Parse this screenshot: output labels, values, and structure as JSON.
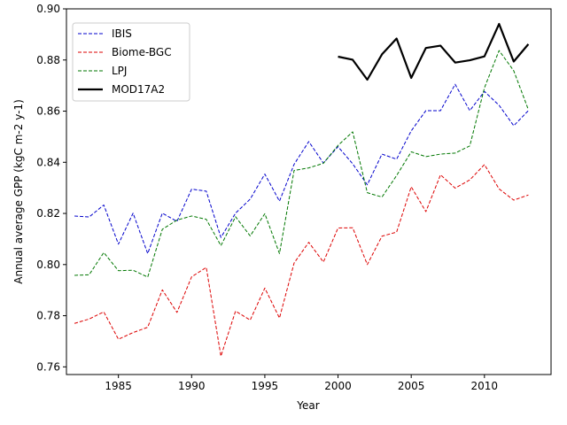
{
  "chart_data": {
    "type": "line",
    "title": "",
    "xlabel": "Year",
    "ylabel": "Annual average GPP (kgC m-2 y-1)",
    "xlim": [
      1981.45,
      2014.55
    ],
    "ylim": [
      0.757,
      0.9
    ],
    "xticks": [
      1985,
      1990,
      1995,
      2000,
      2005,
      2010
    ],
    "xtick_labels": [
      "1985",
      "1990",
      "1995",
      "2000",
      "2005",
      "2010"
    ],
    "yticks": [
      0.76,
      0.78,
      0.8,
      0.82,
      0.84,
      0.86,
      0.88,
      0.9
    ],
    "ytick_labels": [
      "0.76",
      "0.78",
      "0.80",
      "0.82",
      "0.84",
      "0.86",
      "0.88",
      "0.90"
    ],
    "legend_position": "upper-left",
    "series": [
      {
        "name": "IBIS",
        "color": "#0000cc",
        "style": "dashed",
        "x": [
          1982,
          1983,
          1984,
          1985,
          1986,
          1987,
          1988,
          1989,
          1990,
          1991,
          1992,
          1993,
          1994,
          1995,
          1996,
          1997,
          1998,
          1999,
          2000,
          2001,
          2002,
          2003,
          2004,
          2005,
          2006,
          2007,
          2008,
          2009,
          2010,
          2011,
          2012,
          2013
        ],
        "values": [
          0.819,
          0.8186,
          0.8233,
          0.808,
          0.8201,
          0.8043,
          0.8201,
          0.8169,
          0.8295,
          0.8287,
          0.8106,
          0.8201,
          0.8256,
          0.8354,
          0.8248,
          0.8392,
          0.8481,
          0.8397,
          0.8461,
          0.8394,
          0.8312,
          0.8432,
          0.8412,
          0.8523,
          0.8602,
          0.8602,
          0.8705,
          0.8602,
          0.8677,
          0.8623,
          0.8543,
          0.8602
        ]
      },
      {
        "name": "Biome-BGC",
        "color": "#dd0000",
        "style": "dashed",
        "x": [
          1982,
          1983,
          1984,
          1985,
          1986,
          1987,
          1988,
          1989,
          1990,
          1991,
          1992,
          1993,
          1994,
          1995,
          1996,
          1997,
          1998,
          1999,
          2000,
          2001,
          2002,
          2003,
          2004,
          2005,
          2006,
          2007,
          2008,
          2009,
          2010,
          2011,
          2012,
          2013
        ],
        "values": [
          0.777,
          0.7787,
          0.7815,
          0.7708,
          0.7734,
          0.7755,
          0.7901,
          0.7813,
          0.7952,
          0.7989,
          0.7642,
          0.7818,
          0.7783,
          0.7908,
          0.7791,
          0.8006,
          0.8087,
          0.801,
          0.8143,
          0.8144,
          0.8,
          0.8111,
          0.8127,
          0.8304,
          0.8207,
          0.8351,
          0.8299,
          0.8331,
          0.8391,
          0.8296,
          0.8252,
          0.8272
        ]
      },
      {
        "name": "LPJ",
        "color": "#007700",
        "style": "dashed",
        "x": [
          1982,
          1983,
          1984,
          1985,
          1986,
          1987,
          1988,
          1989,
          1990,
          1991,
          1992,
          1993,
          1994,
          1995,
          1996,
          1997,
          1998,
          1999,
          2000,
          2001,
          2002,
          2003,
          2004,
          2005,
          2006,
          2007,
          2008,
          2009,
          2010,
          2011,
          2012,
          2013
        ],
        "values": [
          0.7958,
          0.796,
          0.8047,
          0.7976,
          0.7978,
          0.7951,
          0.8138,
          0.8174,
          0.819,
          0.8177,
          0.8074,
          0.8187,
          0.8112,
          0.8199,
          0.8043,
          0.8368,
          0.8378,
          0.8396,
          0.8466,
          0.8519,
          0.8281,
          0.8264,
          0.8348,
          0.8441,
          0.8422,
          0.8432,
          0.8436,
          0.8464,
          0.8691,
          0.8837,
          0.8758,
          0.8606
        ]
      },
      {
        "name": "MOD17A2",
        "color": "#000000",
        "style": "solid",
        "x": [
          2000,
          2001,
          2002,
          2003,
          2004,
          2005,
          2006,
          2007,
          2008,
          2009,
          2010,
          2011,
          2012,
          2013
        ],
        "values": [
          0.8813,
          0.8801,
          0.8723,
          0.8822,
          0.8884,
          0.873,
          0.8847,
          0.8856,
          0.879,
          0.8799,
          0.8814,
          0.8941,
          0.8794,
          0.8862
        ]
      }
    ]
  }
}
